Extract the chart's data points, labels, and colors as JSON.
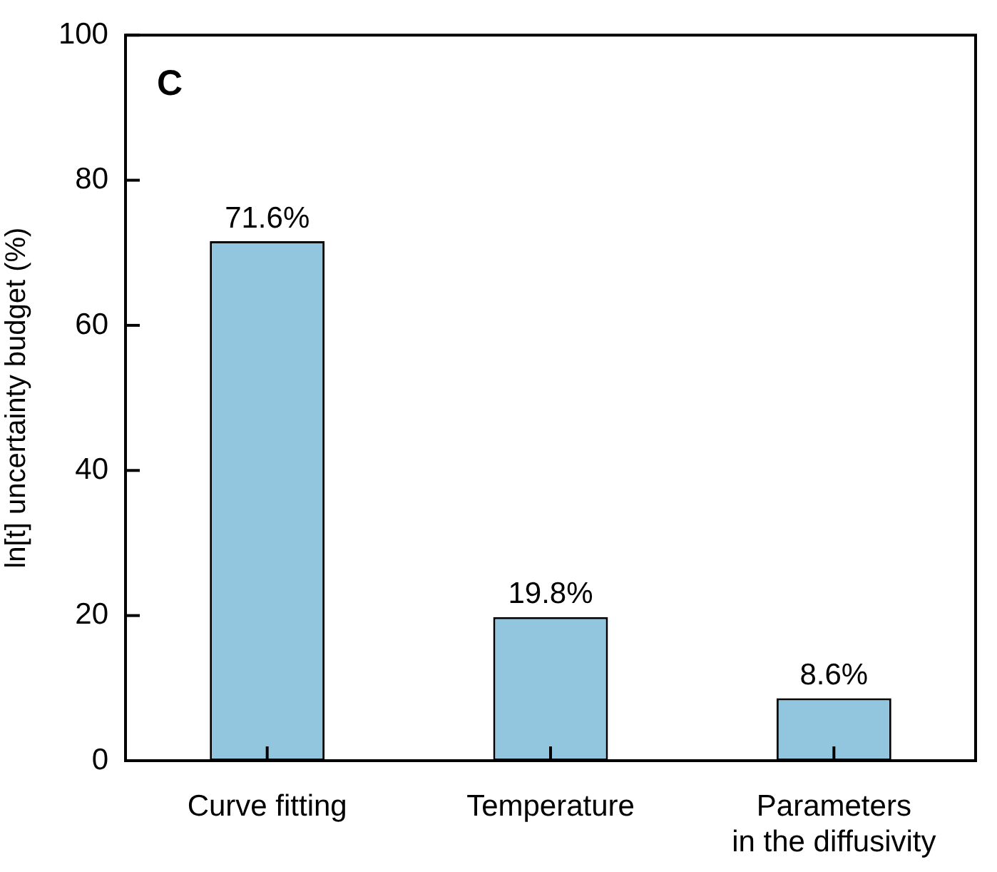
{
  "chart_data": {
    "type": "bar",
    "title": "C",
    "ylabel": "ln[t] uncertainty budget (%)",
    "categories": [
      "Curve fitting",
      "Temperature",
      "Parameters\nin the diffusivity"
    ],
    "values": [
      71.6,
      19.8,
      8.6
    ],
    "value_labels": [
      "71.6%",
      "19.8%",
      "8.6%"
    ],
    "color": "#92c5de",
    "ylim": [
      0,
      100
    ],
    "yticks": [
      0,
      20,
      40,
      60,
      80,
      100
    ],
    "grid": false,
    "legend": false
  }
}
